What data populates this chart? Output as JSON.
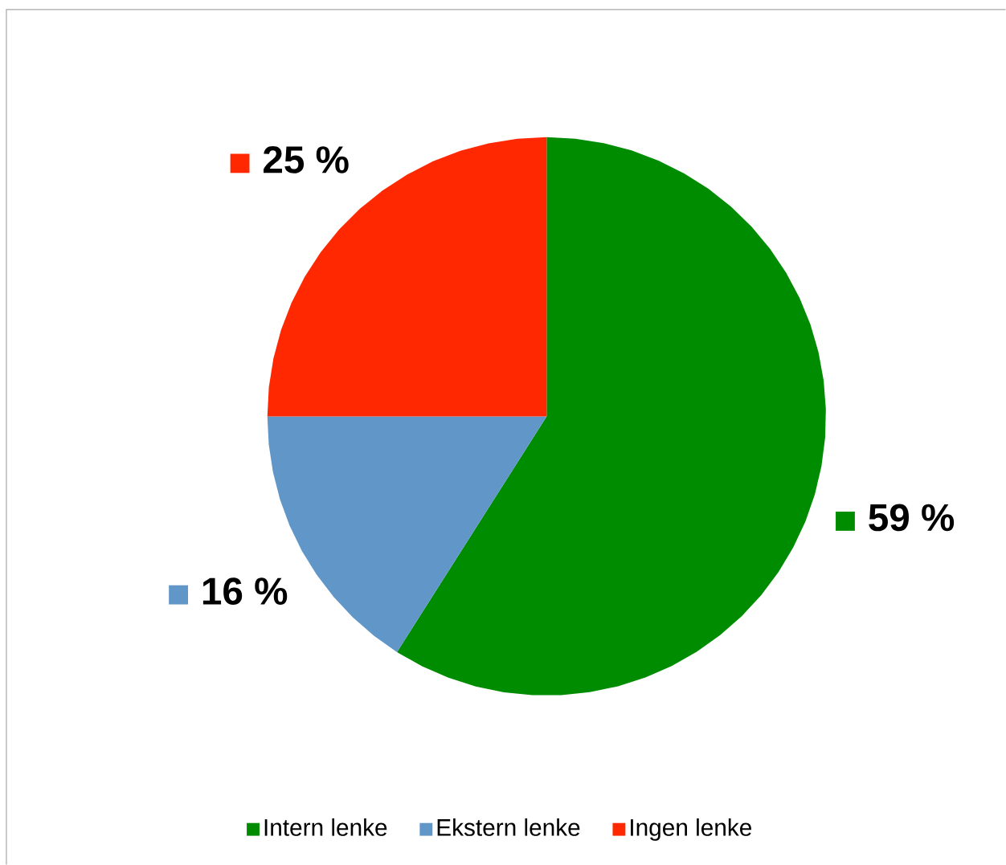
{
  "chart_data": {
    "type": "pie",
    "categories": [
      "Intern lenke",
      "Ekstern lenke",
      "Ingen lenke"
    ],
    "values": [
      59,
      16,
      25
    ],
    "colors": [
      "#008c00",
      "#6096c8",
      "#ff2800"
    ],
    "value_labels": [
      "59 %",
      "16 %",
      "25 %"
    ],
    "legend": "bottom"
  }
}
